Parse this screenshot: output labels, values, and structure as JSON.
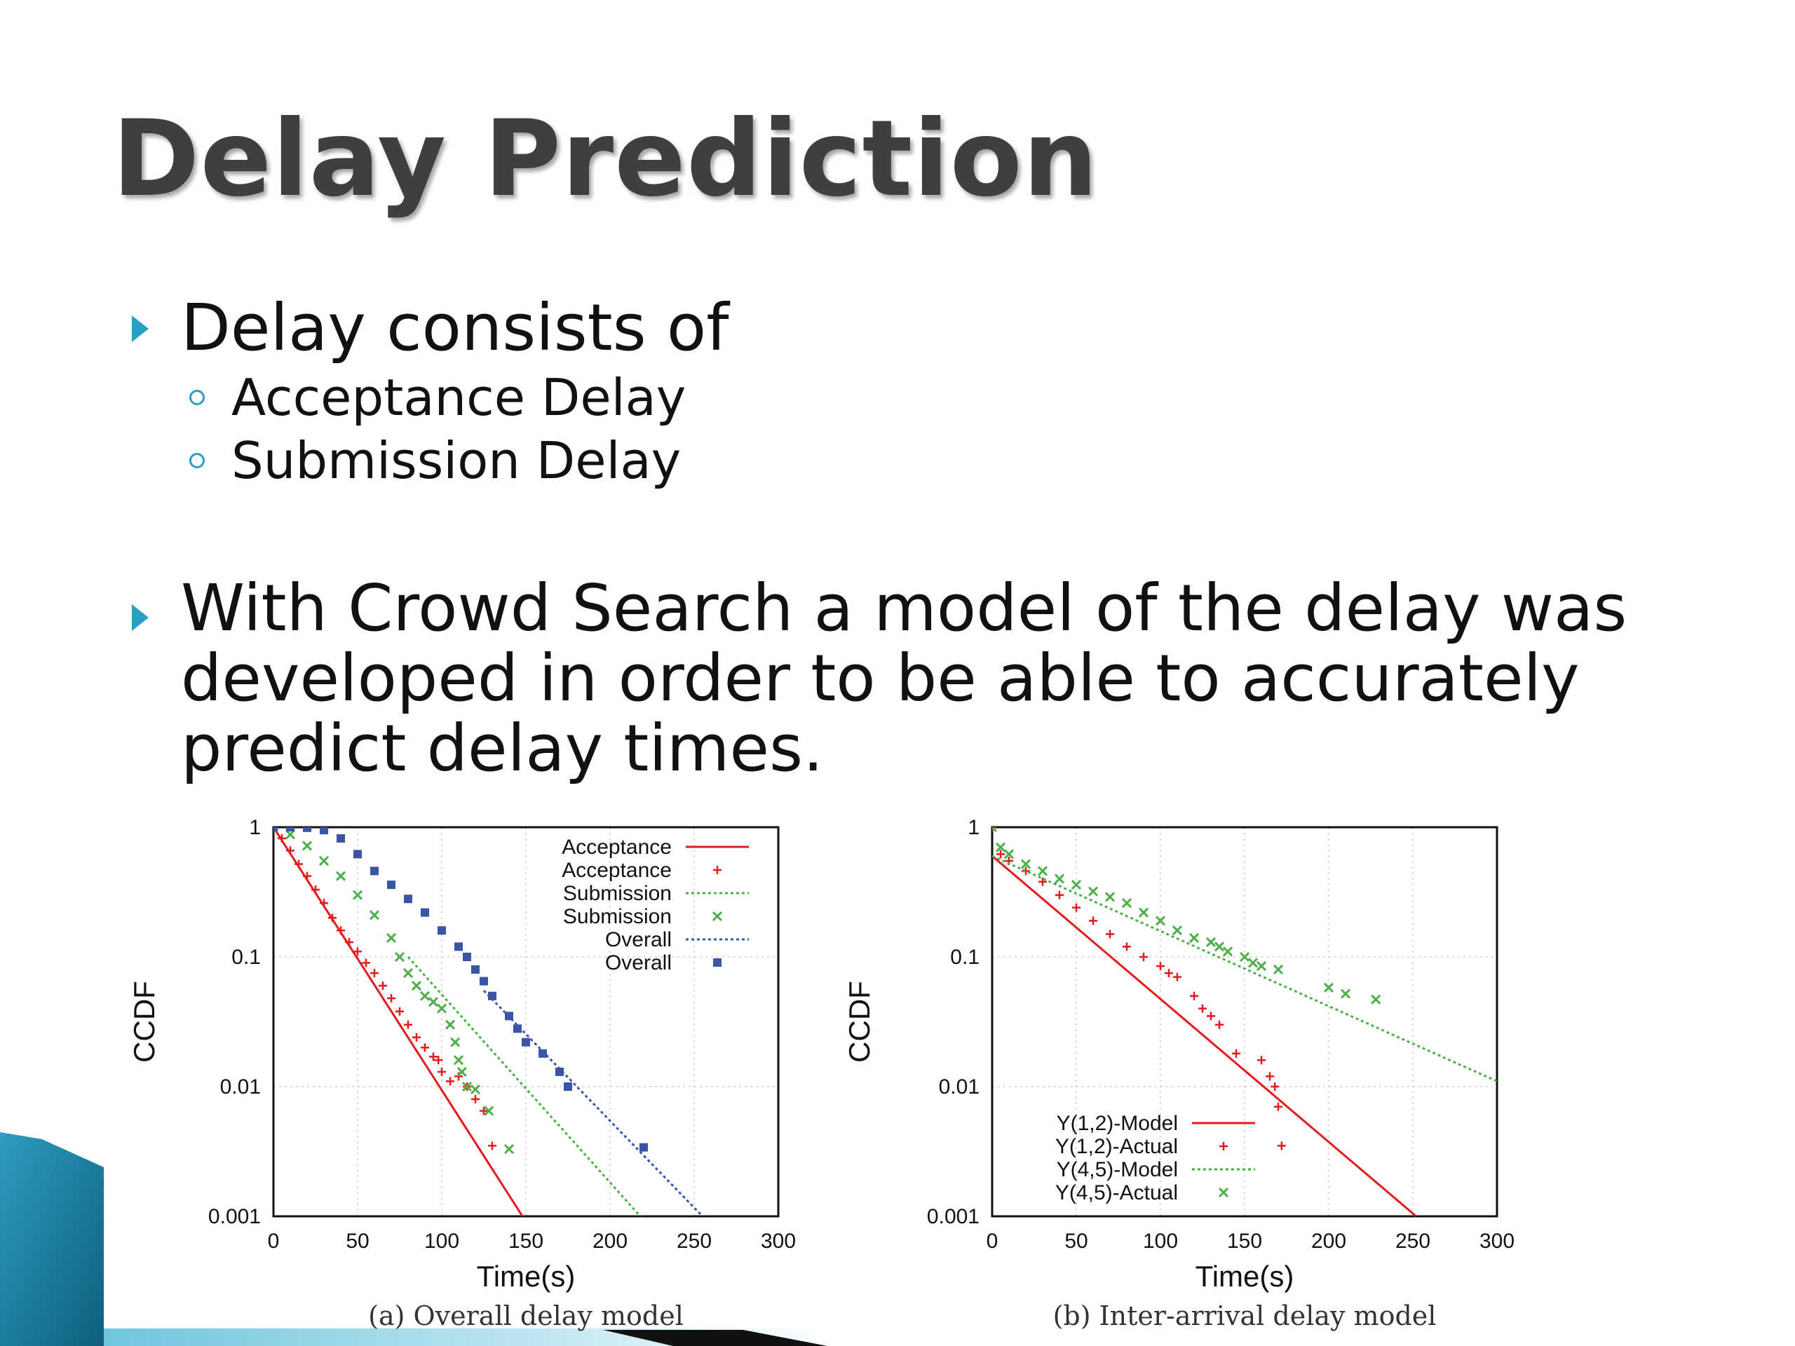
{
  "slide": {
    "title": "Delay Prediction",
    "bullets": [
      {
        "text": "Delay consists of",
        "subitems": [
          "Acceptance Delay",
          "Submission Delay"
        ]
      },
      {
        "text_lines": [
          "With Crowd Search a model of the delay was",
          "developed in order to be able to accurately",
          "predict delay times."
        ]
      }
    ],
    "colors": {
      "accent": "#2a9fc6",
      "title": "#3f3f3f"
    }
  },
  "chart_data": [
    {
      "type": "scatter",
      "caption": "(a) Overall delay model",
      "xlabel": "Time(s)",
      "ylabel": "CCDF",
      "xlim": [
        0,
        300
      ],
      "ylim": [
        0.001,
        1
      ],
      "y_scale": "log",
      "xticks": [
        "0",
        "50",
        "100",
        "150",
        "200",
        "250",
        "300"
      ],
      "yticks": [
        "1",
        "0.1",
        "0.01",
        "0.001"
      ],
      "grid": true,
      "legend_position": "top-right",
      "series": [
        {
          "name": "Acceptance",
          "kind": "line",
          "color": "#e41a1c",
          "x": [
            0,
            148
          ],
          "y": [
            1,
            0.001
          ]
        },
        {
          "name": "Acceptance",
          "kind": "points",
          "marker": "plus",
          "color": "#e41a1c",
          "x": [
            0,
            5,
            10,
            15,
            20,
            25,
            30,
            35,
            40,
            45,
            50,
            55,
            60,
            65,
            70,
            75,
            80,
            85,
            90,
            95,
            98,
            100,
            105,
            110,
            115,
            120,
            125,
            130
          ],
          "y": [
            1,
            0.82,
            0.66,
            0.52,
            0.42,
            0.33,
            0.26,
            0.2,
            0.16,
            0.13,
            0.11,
            0.09,
            0.075,
            0.06,
            0.048,
            0.038,
            0.03,
            0.024,
            0.02,
            0.017,
            0.016,
            0.013,
            0.011,
            0.012,
            0.01,
            0.008,
            0.0065,
            0.0035
          ]
        },
        {
          "name": "Submission",
          "kind": "line",
          "color": "#4daf4a",
          "x": [
            80,
            218
          ],
          "y": [
            0.1,
            0.001
          ]
        },
        {
          "name": "Submission",
          "kind": "points",
          "marker": "cross",
          "color": "#4daf4a",
          "x": [
            0,
            10,
            20,
            30,
            40,
            50,
            60,
            70,
            75,
            80,
            85,
            90,
            95,
            100,
            105,
            108,
            110,
            112,
            115,
            120,
            128,
            140
          ],
          "y": [
            1,
            0.88,
            0.72,
            0.55,
            0.42,
            0.3,
            0.21,
            0.14,
            0.1,
            0.075,
            0.06,
            0.05,
            0.045,
            0.04,
            0.03,
            0.022,
            0.016,
            0.013,
            0.01,
            0.0095,
            0.0065,
            0.0033
          ]
        },
        {
          "name": "Overall",
          "kind": "line",
          "color": "#3b55a6",
          "x": [
            125,
            255
          ],
          "y": [
            0.055,
            0.001
          ]
        },
        {
          "name": "Overall",
          "kind": "points",
          "marker": "square",
          "color": "#3b55a6",
          "x": [
            0,
            10,
            20,
            30,
            40,
            50,
            60,
            70,
            80,
            90,
            100,
            110,
            115,
            120,
            125,
            130,
            140,
            145,
            150,
            160,
            170,
            175,
            220
          ],
          "y": [
            1,
            1,
            0.99,
            0.95,
            0.82,
            0.62,
            0.46,
            0.36,
            0.28,
            0.22,
            0.16,
            0.12,
            0.1,
            0.08,
            0.065,
            0.05,
            0.035,
            0.028,
            0.022,
            0.018,
            0.013,
            0.01,
            0.0034
          ]
        }
      ]
    },
    {
      "type": "scatter",
      "caption": "(b) Inter-arrival delay model",
      "xlabel": "Time(s)",
      "ylabel": "CCDF",
      "xlim": [
        0,
        300
      ],
      "ylim": [
        0.001,
        1
      ],
      "y_scale": "log",
      "xticks": [
        "0",
        "50",
        "100",
        "150",
        "200",
        "250",
        "300"
      ],
      "yticks": [
        "1",
        "0.1",
        "0.01",
        "0.001"
      ],
      "grid": true,
      "legend_position": "bottom-left",
      "series": [
        {
          "name": "Y(1,2)-Model",
          "kind": "line",
          "color": "#e41a1c",
          "x": [
            0,
            252
          ],
          "y": [
            0.6,
            0.001
          ]
        },
        {
          "name": "Y(1,2)-Actual",
          "kind": "points",
          "marker": "plus",
          "color": "#e41a1c",
          "x": [
            0,
            5,
            10,
            20,
            30,
            40,
            50,
            60,
            70,
            80,
            90,
            100,
            105,
            110,
            120,
            125,
            130,
            135,
            145,
            160,
            165,
            168,
            170,
            172
          ],
          "y": [
            1,
            0.62,
            0.55,
            0.46,
            0.38,
            0.3,
            0.24,
            0.19,
            0.15,
            0.12,
            0.1,
            0.085,
            0.075,
            0.07,
            0.05,
            0.04,
            0.035,
            0.03,
            0.018,
            0.016,
            0.012,
            0.01,
            0.007,
            0.0035
          ]
        },
        {
          "name": "Y(4,5)-Model",
          "kind": "line",
          "color": "#4daf4a",
          "x": [
            0,
            300
          ],
          "y": [
            0.6,
            0.011
          ]
        },
        {
          "name": "Y(4,5)-Actual",
          "kind": "points",
          "marker": "cross",
          "color": "#4daf4a",
          "x": [
            0,
            5,
            10,
            20,
            30,
            40,
            50,
            60,
            70,
            80,
            90,
            100,
            110,
            120,
            130,
            135,
            140,
            150,
            155,
            160,
            170,
            200,
            210,
            228
          ],
          "y": [
            1,
            0.7,
            0.62,
            0.52,
            0.46,
            0.4,
            0.36,
            0.32,
            0.29,
            0.26,
            0.22,
            0.19,
            0.16,
            0.14,
            0.13,
            0.12,
            0.11,
            0.1,
            0.09,
            0.085,
            0.08,
            0.058,
            0.052,
            0.047
          ]
        }
      ]
    }
  ]
}
